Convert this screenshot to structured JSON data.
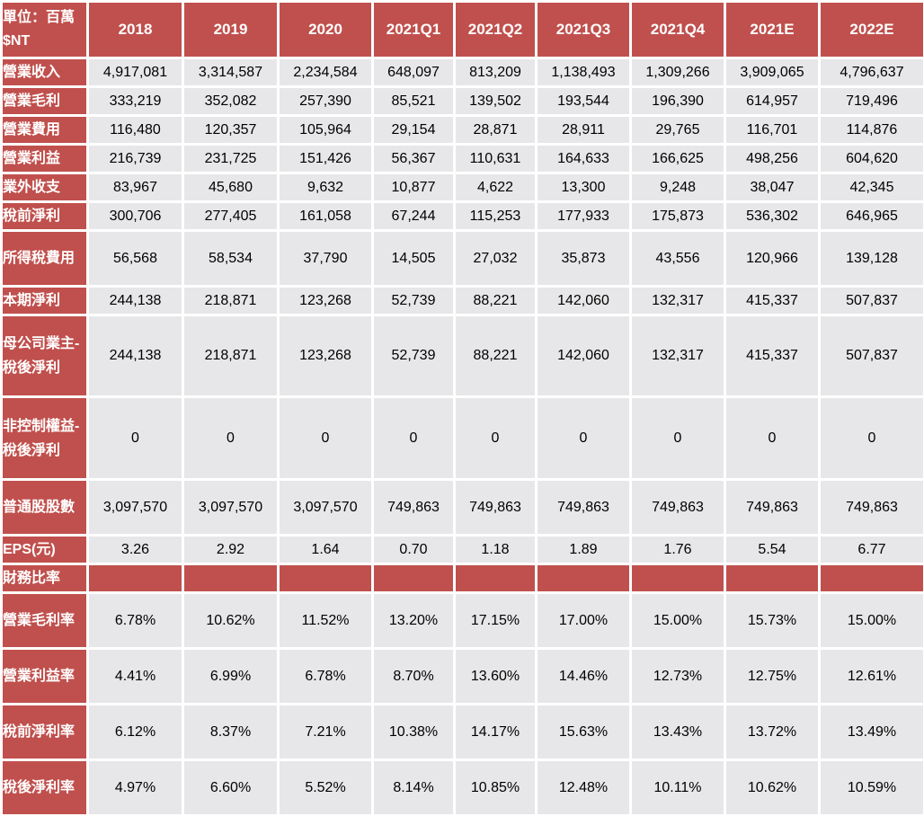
{
  "colors": {
    "header_bg": "#c0504d",
    "cell_bg": "#e7e7e9",
    "header_text": "#ffffff"
  },
  "table": {
    "corner": "單位：百萬$NT",
    "columns": [
      "2018",
      "2019",
      "2020",
      "2021Q1",
      "2021Q2",
      "2021Q3",
      "2021Q4",
      "2021E",
      "2022E"
    ],
    "rows": [
      {
        "label": "營業收入",
        "values": [
          "4,917,081",
          "3,314,587",
          "2,234,584",
          "648,097",
          "813,209",
          "1,138,493",
          "1,309,266",
          "3,909,065",
          "4,796,637"
        ]
      },
      {
        "label": "營業毛利",
        "values": [
          "333,219",
          "352,082",
          "257,390",
          "85,521",
          "139,502",
          "193,544",
          "196,390",
          "614,957",
          "719,496"
        ]
      },
      {
        "label": "營業費用",
        "values": [
          "116,480",
          "120,357",
          "105,964",
          "29,154",
          "28,871",
          "28,911",
          "29,765",
          "116,701",
          "114,876"
        ]
      },
      {
        "label": "營業利益",
        "values": [
          "216,739",
          "231,725",
          "151,426",
          "56,367",
          "110,631",
          "164,633",
          "166,625",
          "498,256",
          "604,620"
        ]
      },
      {
        "label": "業外收支",
        "values": [
          "83,967",
          "45,680",
          "9,632",
          "10,877",
          "4,622",
          "13,300",
          "9,248",
          "38,047",
          "42,345"
        ]
      },
      {
        "label": "稅前淨利",
        "values": [
          "300,706",
          "277,405",
          "161,058",
          "67,244",
          "115,253",
          "177,933",
          "175,873",
          "536,302",
          "646,965"
        ]
      },
      {
        "label": "所得稅費用",
        "values": [
          "56,568",
          "58,534",
          "37,790",
          "14,505",
          "27,032",
          "35,873",
          "43,556",
          "120,966",
          "139,128"
        ]
      },
      {
        "label": "本期淨利",
        "values": [
          "244,138",
          "218,871",
          "123,268",
          "52,739",
          "88,221",
          "142,060",
          "132,317",
          "415,337",
          "507,837"
        ]
      },
      {
        "label": "母公司業主-稅後淨利",
        "values": [
          "244,138",
          "218,871",
          "123,268",
          "52,739",
          "88,221",
          "142,060",
          "132,317",
          "415,337",
          "507,837"
        ]
      },
      {
        "label": "非控制權益-稅後淨利",
        "values": [
          "0",
          "0",
          "0",
          "0",
          "0",
          "0",
          "0",
          "0",
          "0"
        ]
      },
      {
        "label": "普通股股數",
        "values": [
          "3,097,570",
          "3,097,570",
          "3,097,570",
          "749,863",
          "749,863",
          "749,863",
          "749,863",
          "749,863",
          "749,863"
        ]
      },
      {
        "label": "EPS(元)",
        "values": [
          "3.26",
          "2.92",
          "1.64",
          "0.70",
          "1.18",
          "1.89",
          "1.76",
          "5.54",
          "6.77"
        ]
      },
      {
        "label": "財務比率",
        "section": true,
        "values": []
      },
      {
        "label": "營業毛利率",
        "values": [
          "6.78%",
          "10.62%",
          "11.52%",
          "13.20%",
          "17.15%",
          "17.00%",
          "15.00%",
          "15.73%",
          "15.00%"
        ]
      },
      {
        "label": "營業利益率",
        "values": [
          "4.41%",
          "6.99%",
          "6.78%",
          "8.70%",
          "13.60%",
          "14.46%",
          "12.73%",
          "12.75%",
          "12.61%"
        ]
      },
      {
        "label": "稅前淨利率",
        "values": [
          "6.12%",
          "8.37%",
          "7.21%",
          "10.38%",
          "14.17%",
          "15.63%",
          "13.43%",
          "13.72%",
          "13.49%"
        ]
      },
      {
        "label": "稅後淨利率",
        "values": [
          "4.97%",
          "6.60%",
          "5.52%",
          "8.14%",
          "10.85%",
          "12.48%",
          "10.11%",
          "10.62%",
          "10.59%"
        ]
      }
    ]
  }
}
